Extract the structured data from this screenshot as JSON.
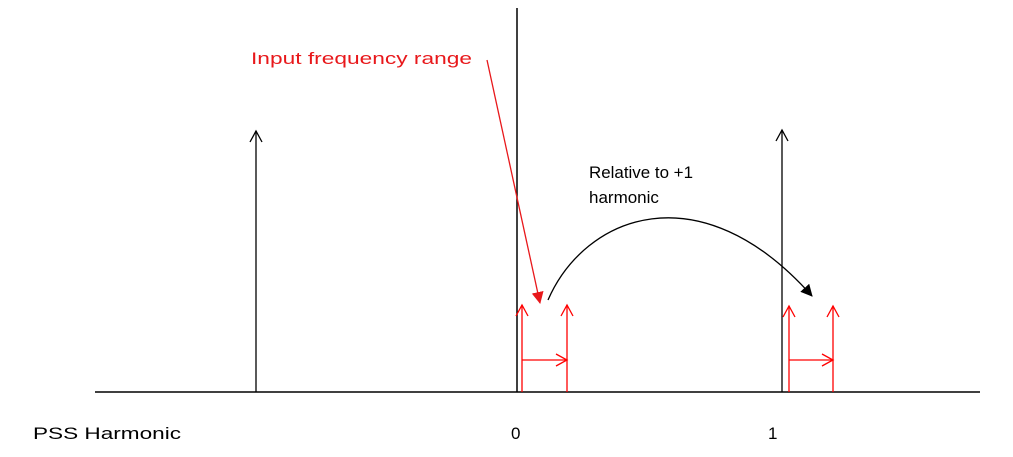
{
  "labels": {
    "input_range": "Input frequency range",
    "relative_line1": "Relative to +1",
    "relative_line2": "harmonic",
    "axis_name": "PSS Harmonic",
    "tick_zero": "0",
    "tick_one": "1"
  },
  "colors": {
    "black": "#000000",
    "red": "#ff0000",
    "annotation_red": "#e8181b"
  }
}
